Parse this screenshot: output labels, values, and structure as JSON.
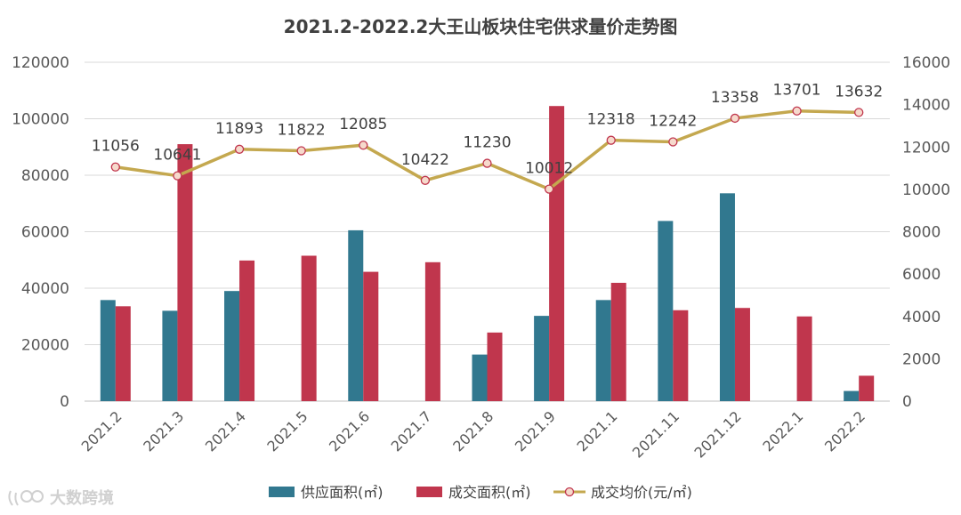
{
  "chart_data": {
    "type": "bar+line",
    "title": "2021.2-2022.2大王山板块住宅供求量价走势图",
    "categories": [
      "2021.2",
      "2021.3",
      "2021.4",
      "2021.5",
      "2021.6",
      "2021.7",
      "2021.8",
      "2021.9",
      "2021.1",
      "2021.11",
      "2021.12",
      "2022.1",
      "2022.2"
    ],
    "y_left": {
      "min": 0,
      "max": 120000,
      "ticks": [
        "0",
        "20000",
        "40000",
        "60000",
        "80000",
        "100000",
        "120000"
      ]
    },
    "y_right": {
      "min": 0,
      "max": 16000,
      "ticks": [
        "0",
        "2000",
        "4000",
        "6000",
        "8000",
        "10000",
        "12000",
        "14000",
        "16000"
      ]
    },
    "series": [
      {
        "name": "供应面积(㎡)",
        "type": "bar",
        "axis": "left",
        "color": "#31788f",
        "values": [
          35800,
          32000,
          39000,
          0,
          60500,
          0,
          16500,
          30200,
          35800,
          63800,
          73600,
          0,
          3600
        ]
      },
      {
        "name": "成交面积(㎡)",
        "type": "bar",
        "axis": "left",
        "color": "#c0364d",
        "values": [
          33600,
          91000,
          49800,
          51500,
          45800,
          49200,
          24300,
          104500,
          41900,
          32200,
          33000,
          30000,
          9000
        ]
      },
      {
        "name": "成交均价(元/㎡)",
        "type": "line",
        "axis": "right",
        "color": "#c4a84f",
        "marker_fill": "#f6d9cc",
        "marker_stroke": "#c0364d",
        "values": [
          11056,
          10641,
          11893,
          11822,
          12085,
          10422,
          11230,
          10012,
          12318,
          12242,
          13358,
          13701,
          13632
        ],
        "labels": [
          "11056",
          "10641",
          "11893",
          "11822",
          "12085",
          "10422",
          "11230",
          "10012",
          "12318",
          "12242",
          "13358",
          "13701",
          "13632"
        ]
      }
    ],
    "legend_position": "bottom",
    "grid": true
  },
  "watermark": {
    "text": "大数跨境",
    "icon": "logo-icon"
  }
}
